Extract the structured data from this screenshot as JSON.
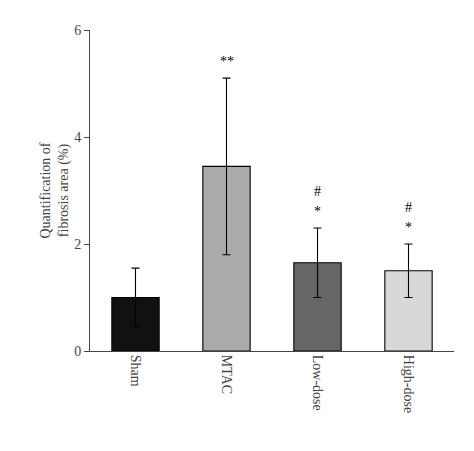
{
  "chart_data": {
    "type": "bar",
    "categories": [
      "Sham",
      "MTAC",
      "Low-dose",
      "High-dose"
    ],
    "values": [
      1.0,
      3.45,
      1.65,
      1.5
    ],
    "errors": [
      0.55,
      1.65,
      0.65,
      0.5
    ],
    "colors": [
      "#111111",
      "#aaaaaa",
      "#666666",
      "#d8d8d8"
    ],
    "ylabel": "Quantification of\nfibrosis area (%)",
    "ylim": [
      0,
      6
    ],
    "yticks": [
      0,
      2,
      4,
      6
    ],
    "grid": false,
    "annotations": [
      {
        "text": "**",
        "x": "MTAC",
        "y": 5.23
      },
      {
        "text": "#",
        "x": "Low-dose",
        "y": 2.81
      },
      {
        "text": "*",
        "x": "Low-dose",
        "y": 2.43
      },
      {
        "text": "#",
        "x": "High-dose",
        "y": 2.51
      },
      {
        "text": "*",
        "x": "High-dose",
        "y": 2.13
      }
    ]
  }
}
